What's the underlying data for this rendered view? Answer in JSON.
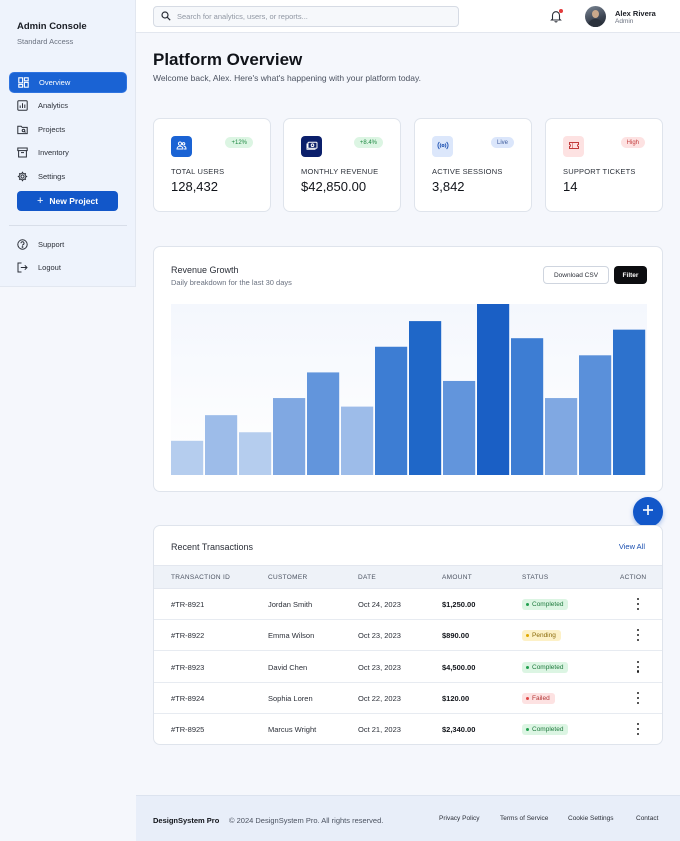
{
  "sidebar": {
    "title": "Admin Console",
    "subtitle": "Standard Access",
    "nav": [
      {
        "label": "Overview",
        "icon": "dashboard-icon",
        "active": true
      },
      {
        "label": "Analytics",
        "icon": "analytics-icon",
        "active": false
      },
      {
        "label": "Projects",
        "icon": "folder-icon",
        "active": false
      },
      {
        "label": "Inventory",
        "icon": "inventory-icon",
        "active": false
      },
      {
        "label": "Settings",
        "icon": "gear-icon",
        "active": false
      }
    ],
    "new_project_label": "New Project",
    "secondary": [
      {
        "label": "Support",
        "icon": "help-icon"
      },
      {
        "label": "Logout",
        "icon": "logout-icon"
      }
    ]
  },
  "topbar": {
    "search_placeholder": "Search for analytics, users, or reports...",
    "user_name": "Alex Rivera",
    "user_role": "Admin"
  },
  "header": {
    "title": "Platform Overview",
    "subtitle": "Welcome back, Alex. Here's what's happening with your platform today."
  },
  "stats": [
    {
      "label": "TOTAL USERS",
      "value": "128,432",
      "badge": "+12%",
      "icon": "users-icon",
      "icon_bg": "#1a63d4",
      "badge_bg": "#dcf5e3",
      "badge_color": "#1f8a43"
    },
    {
      "label": "MONTHLY REVENUE",
      "value": "$42,850.00",
      "badge": "+8.4%",
      "icon": "payments-icon",
      "icon_bg": "#0b1f6b",
      "badge_bg": "#dcf5e3",
      "badge_color": "#1f8a43"
    },
    {
      "label": "ACTIVE SESSIONS",
      "value": "3,842",
      "badge": "Live",
      "icon": "broadcast-icon",
      "icon_bg": "#dce7fb",
      "badge_bg": "#dbe6fb",
      "badge_color": "#3c5a9a"
    },
    {
      "label": "SUPPORT TICKETS",
      "value": "14",
      "badge": "High",
      "icon": "ticket-icon",
      "icon_bg": "#fde2e2",
      "badge_bg": "#fde2e2",
      "badge_color": "#c23b3b"
    }
  ],
  "chart": {
    "title": "Revenue Growth",
    "subtitle": "Daily breakdown for the last 30 days",
    "download_label": "Download CSV",
    "filter_label": "Filter"
  },
  "chart_data": {
    "type": "bar",
    "values": [
      20,
      35,
      25,
      45,
      60,
      40,
      75,
      90,
      55,
      100,
      80,
      45,
      70,
      85
    ],
    "ylim": [
      0,
      100
    ],
    "colors": [
      "#b5cdee",
      "#9dbce9",
      "#b5cdee",
      "#80a8e2",
      "#6295dc",
      "#9dbce9",
      "#3d7dd3",
      "#1f67c8",
      "#6295dc",
      "#1a5fc5",
      "#3d7dd3",
      "#80a8e2",
      "#5a90da",
      "#2d72cd"
    ],
    "grid": false
  },
  "transactions": {
    "title": "Recent Transactions",
    "view_all": "View All",
    "columns": [
      "TRANSACTION ID",
      "CUSTOMER",
      "DATE",
      "AMOUNT",
      "STATUS",
      "ACTION"
    ],
    "rows": [
      {
        "id": "#TR-8921",
        "customer": "Jordan Smith",
        "date": "Oct 24, 2023",
        "amount": "$1,250.00",
        "status": "Completed"
      },
      {
        "id": "#TR-8922",
        "customer": "Emma Wilson",
        "date": "Oct 23, 2023",
        "amount": "$890.00",
        "status": "Pending"
      },
      {
        "id": "#TR-8923",
        "customer": "David Chen",
        "date": "Oct 23, 2023",
        "amount": "$4,500.00",
        "status": "Completed"
      },
      {
        "id": "#TR-8924",
        "customer": "Sophia Loren",
        "date": "Oct 22, 2023",
        "amount": "$120.00",
        "status": "Failed"
      },
      {
        "id": "#TR-8925",
        "customer": "Marcus Wright",
        "date": "Oct 21, 2023",
        "amount": "$2,340.00",
        "status": "Completed"
      }
    ],
    "status_colors": {
      "Completed": {
        "bg": "#dcf5e3",
        "fg": "#1f7a3e",
        "dot": "#22a04f"
      },
      "Pending": {
        "bg": "#fdf1c7",
        "fg": "#8a6a0a",
        "dot": "#e0a800"
      },
      "Failed": {
        "bg": "#fde2e2",
        "fg": "#b23333",
        "dot": "#e04545"
      }
    }
  },
  "footer": {
    "brand": "DesignSystem Pro",
    "copyright": "© 2024 DesignSystem Pro. All rights reserved.",
    "links": [
      "Privacy Policy",
      "Terms of Service",
      "Cookie Settings",
      "Contact"
    ]
  }
}
